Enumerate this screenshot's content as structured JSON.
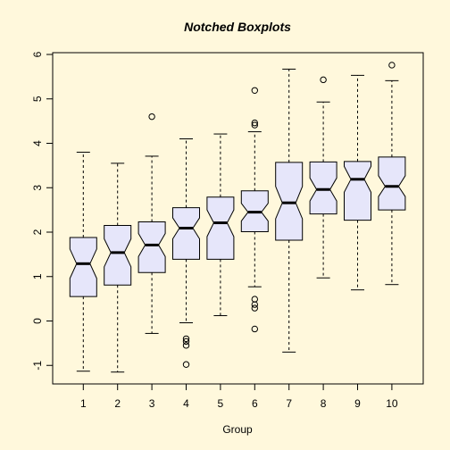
{
  "chart_data": {
    "type": "boxplot",
    "title": "Notched Boxplots",
    "xlabel": "Group",
    "ylabel": "",
    "ylim": [
      -1.42,
      6.0
    ],
    "yticks": [
      -1,
      0,
      1,
      2,
      3,
      4,
      5,
      6
    ],
    "grid": false,
    "notched": true,
    "categories": [
      "1",
      "2",
      "3",
      "4",
      "5",
      "6",
      "7",
      "8",
      "9",
      "10"
    ],
    "groups": [
      {
        "label": "1",
        "whisker_low": -1.13,
        "q1": 0.55,
        "median": 1.29,
        "q3": 1.88,
        "whisker_high": 3.8,
        "notch_low": 0.96,
        "notch_high": 1.62,
        "outliers": []
      },
      {
        "label": "2",
        "whisker_low": -1.15,
        "q1": 0.81,
        "median": 1.54,
        "q3": 2.15,
        "whisker_high": 3.55,
        "notch_low": 1.22,
        "notch_high": 1.85,
        "outliers": []
      },
      {
        "label": "3",
        "whisker_low": -0.28,
        "q1": 1.09,
        "median": 1.71,
        "q3": 2.23,
        "whisker_high": 3.71,
        "notch_low": 1.45,
        "notch_high": 1.97,
        "outliers": [
          4.6
        ]
      },
      {
        "label": "4",
        "whisker_low": -0.04,
        "q1": 1.39,
        "median": 2.09,
        "q3": 2.55,
        "whisker_high": 4.1,
        "notch_low": 1.85,
        "notch_high": 2.32,
        "outliers": [
          -0.4,
          -0.46,
          -0.55,
          -0.98
        ]
      },
      {
        "label": "5",
        "whisker_low": 0.12,
        "q1": 1.39,
        "median": 2.21,
        "q3": 2.79,
        "whisker_high": 4.21,
        "notch_low": 1.9,
        "notch_high": 2.5,
        "outliers": []
      },
      {
        "label": "6",
        "whisker_low": 0.77,
        "q1": 2.01,
        "median": 2.45,
        "q3": 2.93,
        "whisker_high": 4.26,
        "notch_low": 2.25,
        "notch_high": 2.65,
        "outliers": [
          5.19,
          4.46,
          4.41,
          0.49,
          0.37,
          0.29,
          -0.18
        ]
      },
      {
        "label": "7",
        "whisker_low": -0.7,
        "q1": 1.82,
        "median": 2.66,
        "q3": 3.57,
        "whisker_high": 5.67,
        "notch_low": 2.3,
        "notch_high": 3.03,
        "outliers": []
      },
      {
        "label": "8",
        "whisker_low": 0.97,
        "q1": 2.41,
        "median": 2.96,
        "q3": 3.58,
        "whisker_high": 4.93,
        "notch_low": 2.7,
        "notch_high": 3.22,
        "outliers": [
          5.43
        ]
      },
      {
        "label": "9",
        "whisker_low": 0.7,
        "q1": 2.27,
        "median": 3.19,
        "q3": 3.59,
        "whisker_high": 5.53,
        "notch_low": 2.9,
        "notch_high": 3.48,
        "outliers": []
      },
      {
        "label": "10",
        "whisker_low": 0.82,
        "q1": 2.5,
        "median": 3.03,
        "q3": 3.69,
        "whisker_high": 5.41,
        "notch_low": 2.8,
        "notch_high": 3.27,
        "outliers": [
          5.76
        ]
      }
    ]
  },
  "colors": {
    "background": "#FFF8DC",
    "box_fill": "#E6E6FA",
    "stroke": "#000000"
  }
}
